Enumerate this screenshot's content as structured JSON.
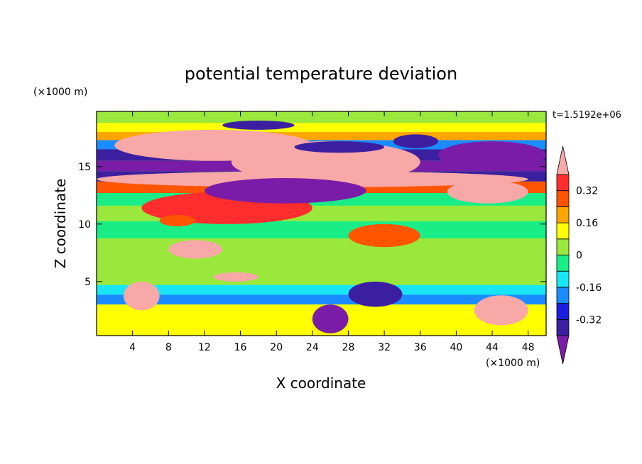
{
  "chart_data": {
    "type": "heatmap",
    "title": "potential temperature deviation",
    "xlabel": "X coordinate",
    "ylabel": "Z coordinate",
    "x_unit": "(×1000 m)",
    "y_unit": "(×1000 m)",
    "time_label": "t=1.5192e+06",
    "xlim": [
      0,
      50
    ],
    "ylim": [
      0.3,
      19.8
    ],
    "x_ticks": [
      4,
      8,
      12,
      16,
      20,
      24,
      28,
      32,
      36,
      40,
      44,
      48
    ],
    "y_ticks": [
      5,
      10,
      15
    ],
    "colorbar": {
      "levels": [
        -0.4,
        -0.32,
        -0.24,
        -0.16,
        -0.08,
        0,
        0.08,
        0.16,
        0.24,
        0.32,
        0.4
      ],
      "tick_labels": [
        "0.32",
        "0.16",
        "0",
        "-0.16",
        "-0.32"
      ],
      "tick_values": [
        0.32,
        0.16,
        0,
        -0.16,
        -0.32
      ],
      "colors": [
        "#7a1ca8",
        "#3c1fa0",
        "#1b1ee0",
        "#1a8cff",
        "#19e6f5",
        "#19ee86",
        "#9ae83b",
        "#ffff00",
        "#ffa500",
        "#ff5500",
        "#ff2d2d",
        "#f9a8a8"
      ],
      "extend": "both"
    },
    "bands": [
      {
        "z": 19.2,
        "value": 0.05
      },
      {
        "z": 18.4,
        "value": 0.12
      },
      {
        "z": 17.6,
        "value": 0.2
      },
      {
        "z": 17.0,
        "value": -0.2
      },
      {
        "z": 16.0,
        "value": -0.36
      },
      {
        "z": 15.0,
        "value": -0.42
      },
      {
        "z": 14.2,
        "value": -0.38
      },
      {
        "z": 13.2,
        "value": 0.3
      },
      {
        "z": 12.2,
        "value": -0.05
      },
      {
        "z": 11.0,
        "value": 0.05
      },
      {
        "z": 9.5,
        "value": -0.02
      },
      {
        "z": 8.0,
        "value": 0.04
      },
      {
        "z": 6.5,
        "value": 0.03
      },
      {
        "z": 5.2,
        "value": 0.0
      },
      {
        "z": 4.2,
        "value": -0.12
      },
      {
        "z": 3.5,
        "value": -0.22
      },
      {
        "z": 2.5,
        "value": 0.08
      },
      {
        "z": 1.2,
        "value": 0.1
      }
    ],
    "features": [
      {
        "x": [
          2,
          24
        ],
        "z": [
          15.5,
          18.2
        ],
        "value": 0.45
      },
      {
        "x": [
          15,
          36
        ],
        "z": [
          13.6,
          17.2
        ],
        "value": 0.45
      },
      {
        "x": [
          0,
          48
        ],
        "z": [
          13.2,
          14.6
        ],
        "value": 0.4
      },
      {
        "x": [
          39,
          48
        ],
        "z": [
          11.8,
          13.8
        ],
        "value": 0.45
      },
      {
        "x": [
          5,
          24
        ],
        "z": [
          10.0,
          12.8
        ],
        "value": 0.36
      },
      {
        "x": [
          7,
          11
        ],
        "z": [
          9.8,
          10.8
        ],
        "value": 0.3
      },
      {
        "x": [
          8,
          14
        ],
        "z": [
          7.0,
          8.6
        ],
        "value": 0.45
      },
      {
        "x": [
          28,
          36
        ],
        "z": [
          8.0,
          10.0
        ],
        "value": 0.3
      },
      {
        "x": [
          13,
          18
        ],
        "z": [
          5.0,
          5.8
        ],
        "value": 0.45
      },
      {
        "x": [
          3,
          7
        ],
        "z": [
          2.5,
          5.0
        ],
        "value": 0.45
      },
      {
        "x": [
          42,
          48
        ],
        "z": [
          1.2,
          3.8
        ],
        "value": 0.45
      },
      {
        "x": [
          14,
          22
        ],
        "z": [
          18.2,
          19.0
        ],
        "value": -0.36
      },
      {
        "x": [
          22,
          32
        ],
        "z": [
          16.2,
          17.2
        ],
        "value": -0.38
      },
      {
        "x": [
          33,
          38
        ],
        "z": [
          16.6,
          17.8
        ],
        "value": -0.36
      },
      {
        "x": [
          12,
          30
        ],
        "z": [
          11.8,
          14.0
        ],
        "value": -0.42
      },
      {
        "x": [
          38,
          50
        ],
        "z": [
          14.8,
          17.2
        ],
        "value": -0.42
      },
      {
        "x": [
          28,
          34
        ],
        "z": [
          2.8,
          5.0
        ],
        "value": -0.4
      },
      {
        "x": [
          24,
          28
        ],
        "z": [
          0.5,
          3.0
        ],
        "value": -0.42
      }
    ]
  }
}
